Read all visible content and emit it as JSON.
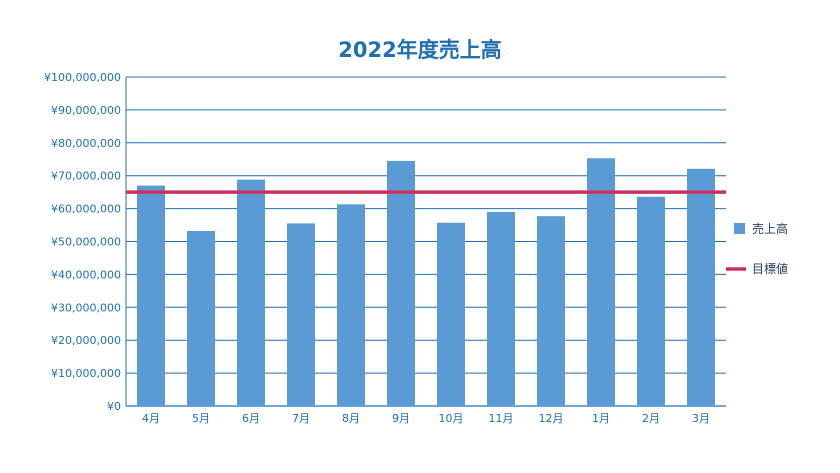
{
  "chart_data": {
    "type": "bar",
    "title": "2022年度売上高",
    "categories": [
      "4月",
      "5月",
      "6月",
      "7月",
      "8月",
      "9月",
      "10月",
      "11月",
      "12月",
      "1月",
      "2月",
      "3月"
    ],
    "series": [
      {
        "name": "売上高",
        "type": "bar",
        "color": "#5b9bd5",
        "values": [
          67000000,
          53200000,
          68800000,
          55500000,
          61300000,
          74500000,
          55700000,
          59000000,
          57700000,
          75300000,
          63600000,
          72100000
        ]
      },
      {
        "name": "目標値",
        "type": "line",
        "color": "#c9325f",
        "values": [
          65000000,
          65000000,
          65000000,
          65000000,
          65000000,
          65000000,
          65000000,
          65000000,
          65000000,
          65000000,
          65000000,
          65000000
        ]
      }
    ],
    "y_ticks": [
      "¥0",
      "¥10,000,000",
      "¥20,000,000",
      "¥30,000,000",
      "¥40,000,000",
      "¥50,000,000",
      "¥60,000,000",
      "¥70,000,000",
      "¥80,000,000",
      "¥90,000,000",
      "¥100,000,000"
    ],
    "ylim": [
      0,
      100000000
    ],
    "grid": true,
    "gridline_color": "#1f6fb2",
    "legend_position": "right"
  }
}
